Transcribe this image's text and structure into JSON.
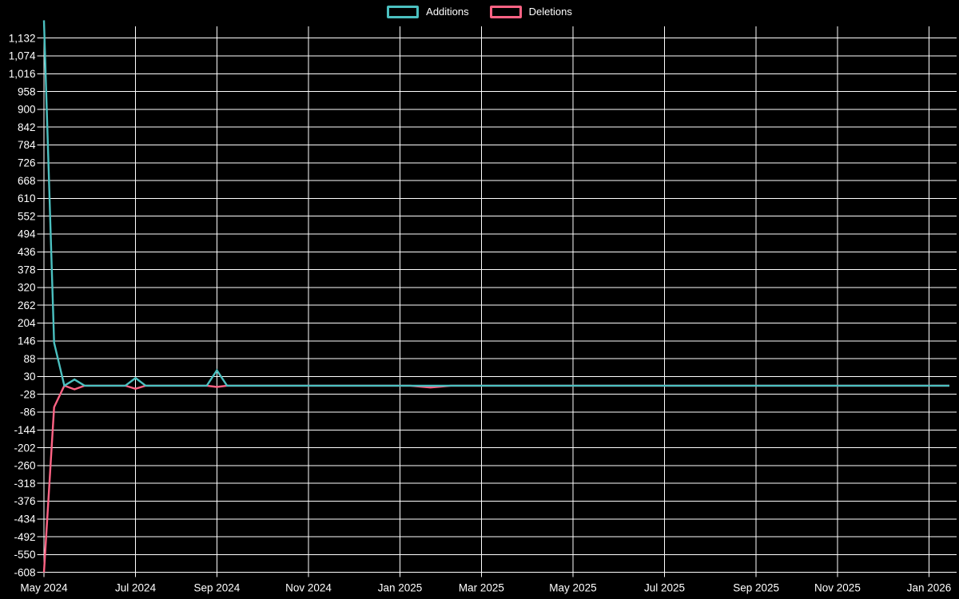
{
  "legend": {
    "items": [
      {
        "label": "Additions",
        "color": "#4bc0c0"
      },
      {
        "label": "Deletions",
        "color": "#ff6384"
      }
    ]
  },
  "chart_data": {
    "type": "line",
    "title": "",
    "xlabel": "",
    "ylabel": "",
    "background_color": "#000000",
    "grid": true,
    "grid_color": "#ffffff",
    "axis_text_color": "#ffffff",
    "legend_position": "top-center",
    "x_unit": "week",
    "x_range": [
      "May 2024",
      "Jan 2026"
    ],
    "ylim": [
      -608,
      1190
    ],
    "y_tick_step": 58,
    "y_tick_labels": [
      "1,132",
      "1,074",
      "1,016",
      "958",
      "900",
      "842",
      "784",
      "726",
      "668",
      "610",
      "552",
      "494",
      "436",
      "378",
      "320",
      "262",
      "204",
      "146",
      "88",
      "30",
      "-28",
      "-86",
      "-144",
      "-202",
      "-260",
      "-318",
      "-376",
      "-434",
      "-492",
      "-550",
      "-608"
    ],
    "x_ticks": [
      {
        "label": "May 2024",
        "week": 0
      },
      {
        "label": "Jul 2024",
        "week": 9
      },
      {
        "label": "Sep 2024",
        "week": 17
      },
      {
        "label": "Nov 2024",
        "week": 26
      },
      {
        "label": "Jan 2025",
        "week": 35
      },
      {
        "label": "Mar 2025",
        "week": 43
      },
      {
        "label": "May 2025",
        "week": 52
      },
      {
        "label": "Jul 2025",
        "week": 61
      },
      {
        "label": "Sep 2025",
        "week": 70
      },
      {
        "label": "Nov 2025",
        "week": 78
      },
      {
        "label": "Jan 2026",
        "week": 87
      }
    ],
    "series": [
      {
        "name": "Additions",
        "color": "#4bc0c0",
        "values": [
          1190,
          140,
          0,
          20,
          0,
          0,
          0,
          0,
          0,
          25,
          0,
          0,
          0,
          0,
          0,
          0,
          0,
          50,
          0,
          0,
          0,
          0,
          0,
          0,
          0,
          0,
          0,
          0,
          0,
          0,
          0,
          0,
          0,
          0,
          0,
          0,
          0,
          0,
          0,
          0,
          0,
          0,
          0,
          0,
          0,
          0,
          0,
          0,
          0,
          0,
          0,
          0,
          0,
          0,
          0,
          0,
          0,
          0,
          0,
          0,
          0,
          0,
          0,
          0,
          0,
          0,
          0,
          0,
          0,
          0,
          0,
          0,
          0,
          0,
          0,
          0,
          0,
          0,
          0,
          0,
          0,
          0,
          0,
          0,
          0,
          0,
          0,
          0,
          0,
          0
        ]
      },
      {
        "name": "Deletions",
        "color": "#ff6384",
        "values": [
          -608,
          -70,
          0,
          -12,
          0,
          0,
          0,
          0,
          0,
          -10,
          0,
          0,
          0,
          0,
          0,
          0,
          0,
          -4,
          0,
          0,
          0,
          0,
          0,
          0,
          0,
          0,
          0,
          0,
          0,
          0,
          0,
          0,
          0,
          0,
          0,
          0,
          0,
          -3,
          -6,
          -3,
          0,
          0,
          0,
          0,
          0,
          0,
          0,
          0,
          0,
          0,
          0,
          0,
          0,
          0,
          0,
          0,
          0,
          0,
          0,
          0,
          0,
          0,
          0,
          0,
          0,
          0,
          0,
          0,
          0,
          0,
          0,
          0,
          0,
          0,
          0,
          0,
          0,
          0,
          0,
          0,
          0,
          0,
          0,
          0,
          0,
          0,
          0,
          0,
          0,
          0
        ]
      }
    ]
  }
}
